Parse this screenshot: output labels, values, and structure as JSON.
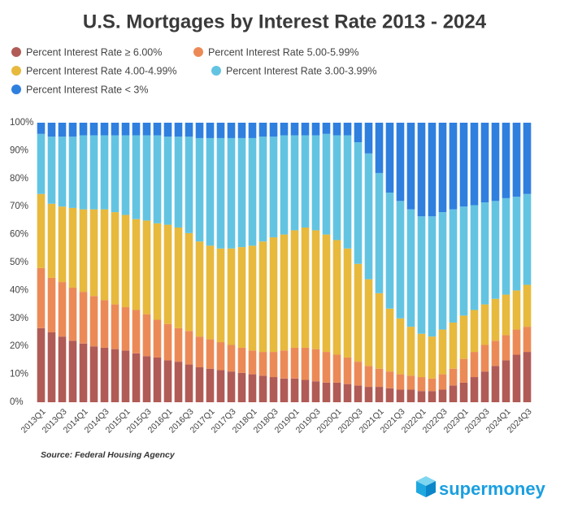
{
  "chart_data": {
    "type": "stacked_bar",
    "title": "U.S. Mortgages by Interest Rate 2013 - 2024",
    "source": "Source: Federal Housing Agency",
    "logo": "supermoney",
    "categories": [
      "2013Q1",
      null,
      "2013Q3",
      null,
      "2014Q1",
      null,
      "2014Q3",
      null,
      "2015Q1",
      null,
      "2015Q3",
      null,
      "2016Q1",
      null,
      "2016Q3",
      null,
      "2017Q1",
      null,
      "2017Q3",
      null,
      "2018Q1",
      null,
      "2018Q3",
      null,
      "2019Q1",
      null,
      "2019Q3",
      null,
      "2020Q1",
      null,
      "2020Q3",
      null,
      "2021Q1",
      null,
      "2021Q3",
      null,
      "2022Q1",
      null,
      "2022Q3",
      null,
      "2023Q1",
      null,
      "2023Q3",
      null,
      "2024Q1",
      null,
      "2024Q3"
    ],
    "series": [
      {
        "name": "Percent Interest Rate ≥ 6.00%",
        "color": "#b15b56",
        "values": [
          26.5,
          25,
          23.5,
          22,
          21,
          20,
          19.5,
          19,
          18.5,
          17.5,
          16.5,
          16,
          15,
          14.5,
          13.5,
          12.5,
          12,
          11.5,
          11,
          10.5,
          10,
          9.5,
          9,
          8.5,
          8.5,
          8,
          7.5,
          7,
          7,
          6.5,
          6,
          5.5,
          5.5,
          5,
          4.5,
          4.5,
          4,
          4,
          4.5,
          6,
          7,
          9,
          11,
          13,
          15,
          17,
          18
        ]
      },
      {
        "name": "Percent Interest Rate 5.00-5.99%",
        "color": "#ec8a57",
        "values": [
          21.5,
          19.5,
          19.5,
          19,
          18.5,
          18,
          17,
          16,
          15.5,
          15.5,
          15,
          13.5,
          13,
          12,
          12,
          11,
          10.5,
          10,
          9.5,
          9,
          8.5,
          8.5,
          9,
          10,
          11,
          11.5,
          11.5,
          11,
          10,
          9.5,
          8.5,
          7.5,
          6.5,
          6,
          5.5,
          5,
          5,
          4.5,
          5.5,
          6,
          8.5,
          9,
          9.5,
          9,
          9,
          9,
          9
        ]
      },
      {
        "name": "Percent Interest Rate 4.00-4.99%",
        "color": "#e7b93d",
        "values": [
          26.5,
          26.5,
          27,
          28.5,
          29.5,
          31,
          32.5,
          33,
          33,
          32.5,
          33.5,
          34.5,
          35.5,
          36,
          35,
          34,
          33.5,
          33.5,
          34.5,
          36,
          37.5,
          39.5,
          41,
          41.5,
          42,
          43,
          42.5,
          42,
          41,
          39,
          35,
          31,
          27,
          22.5,
          20,
          17.5,
          15.5,
          15,
          16,
          16.5,
          15.5,
          15,
          14.5,
          15,
          14.5,
          14,
          15
        ]
      },
      {
        "name": "Percent Interest Rate 3.00-3.99%",
        "color": "#63c4e2",
        "values": [
          21.5,
          24,
          25,
          25.5,
          26.5,
          26.5,
          26.5,
          27.5,
          28.5,
          30,
          30.5,
          31.5,
          31.5,
          32.5,
          34.5,
          37,
          38.5,
          39.5,
          39.5,
          39,
          38.5,
          37.5,
          36,
          35.5,
          34,
          33,
          34,
          36,
          37.5,
          40.5,
          43.5,
          45,
          43,
          41.5,
          42,
          42,
          42,
          43,
          42,
          40.5,
          39,
          37.5,
          36.5,
          35,
          34.5,
          33.5,
          32.5
        ]
      },
      {
        "name": "Percent Interest Rate < 3%",
        "color": "#2f7fdf",
        "values": [
          4,
          5,
          5,
          5,
          4.5,
          4.5,
          4.5,
          4.5,
          4.5,
          4.5,
          4.5,
          4.5,
          5,
          5,
          5,
          5.5,
          5.5,
          5.5,
          5.5,
          5.5,
          5.5,
          5,
          5,
          4.5,
          4.5,
          4.5,
          4.5,
          4,
          4.5,
          4.5,
          7,
          11,
          18,
          25,
          28,
          31,
          33.5,
          33.5,
          32,
          31,
          30,
          29.5,
          28.5,
          28,
          27,
          26.5,
          25.5
        ]
      }
    ],
    "ylim": [
      0,
      100
    ],
    "yticks": [
      {
        "value": 0,
        "label": "0%"
      },
      {
        "value": 10,
        "label": "10%"
      },
      {
        "value": 20,
        "label": "20%"
      },
      {
        "value": 30,
        "label": "30%"
      },
      {
        "value": 40,
        "label": "40%"
      },
      {
        "value": 50,
        "label": "50%"
      },
      {
        "value": 60,
        "label": "60%"
      },
      {
        "value": 70,
        "label": "70%"
      },
      {
        "value": 80,
        "label": "80%"
      },
      {
        "value": 90,
        "label": "90%"
      },
      {
        "value": 100,
        "label": "100%"
      }
    ]
  }
}
